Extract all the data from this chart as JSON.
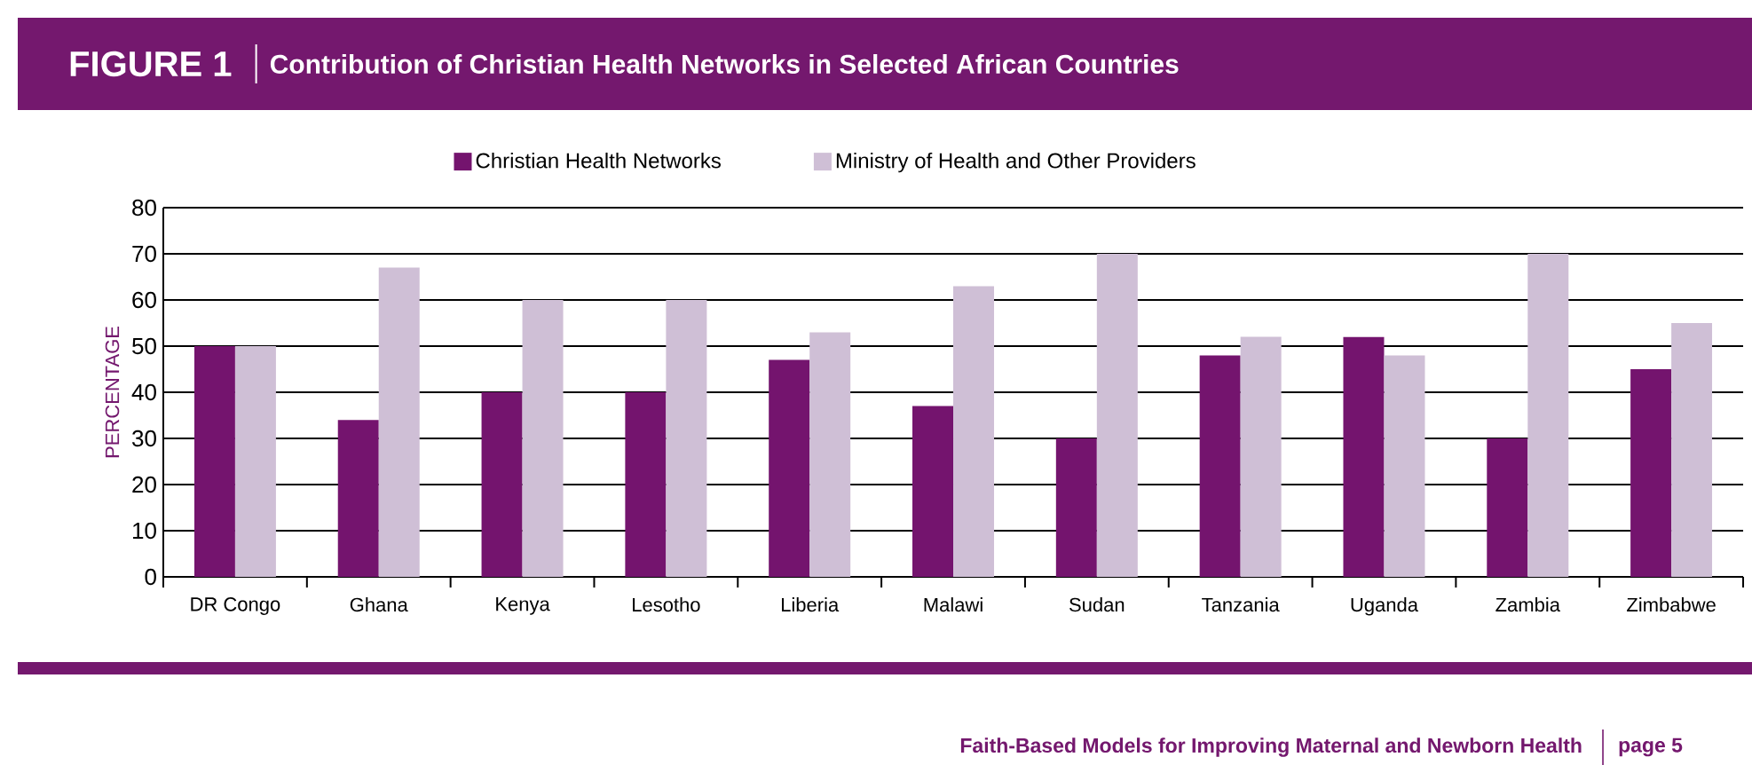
{
  "chart_data": {
    "type": "bar",
    "title": "FIGURE 1",
    "subtitle": "Contribution of Christian Health Networks in Selected African Countries",
    "ylabel": "PERCENTAGE",
    "categories": [
      "DR Congo",
      "Ghana",
      "Kenya",
      "Lesotho",
      "Liberia",
      "Malawi",
      "Sudan",
      "Tanzania",
      "Uganda",
      "Zambia",
      "Zimbabwe"
    ],
    "series": [
      {
        "name": "Christian Health Networks",
        "color": "#74146e",
        "values": [
          50,
          34,
          40,
          40,
          47,
          37,
          30,
          48,
          52,
          30,
          45
        ]
      },
      {
        "name": "Ministry of Health and Other Providers",
        "color": "#cfbfd6",
        "values": [
          50,
          67,
          60,
          60,
          53,
          63,
          70,
          52,
          48,
          70,
          55
        ]
      }
    ],
    "ylim": [
      0,
      80
    ],
    "yticks": [
      0,
      10,
      20,
      30,
      40,
      50,
      60,
      70,
      80
    ],
    "grid": "y",
    "legend": "top",
    "annotations": [
      "Faith-Based Models for Improving Maternal and Newborn Health",
      "page 5"
    ]
  }
}
